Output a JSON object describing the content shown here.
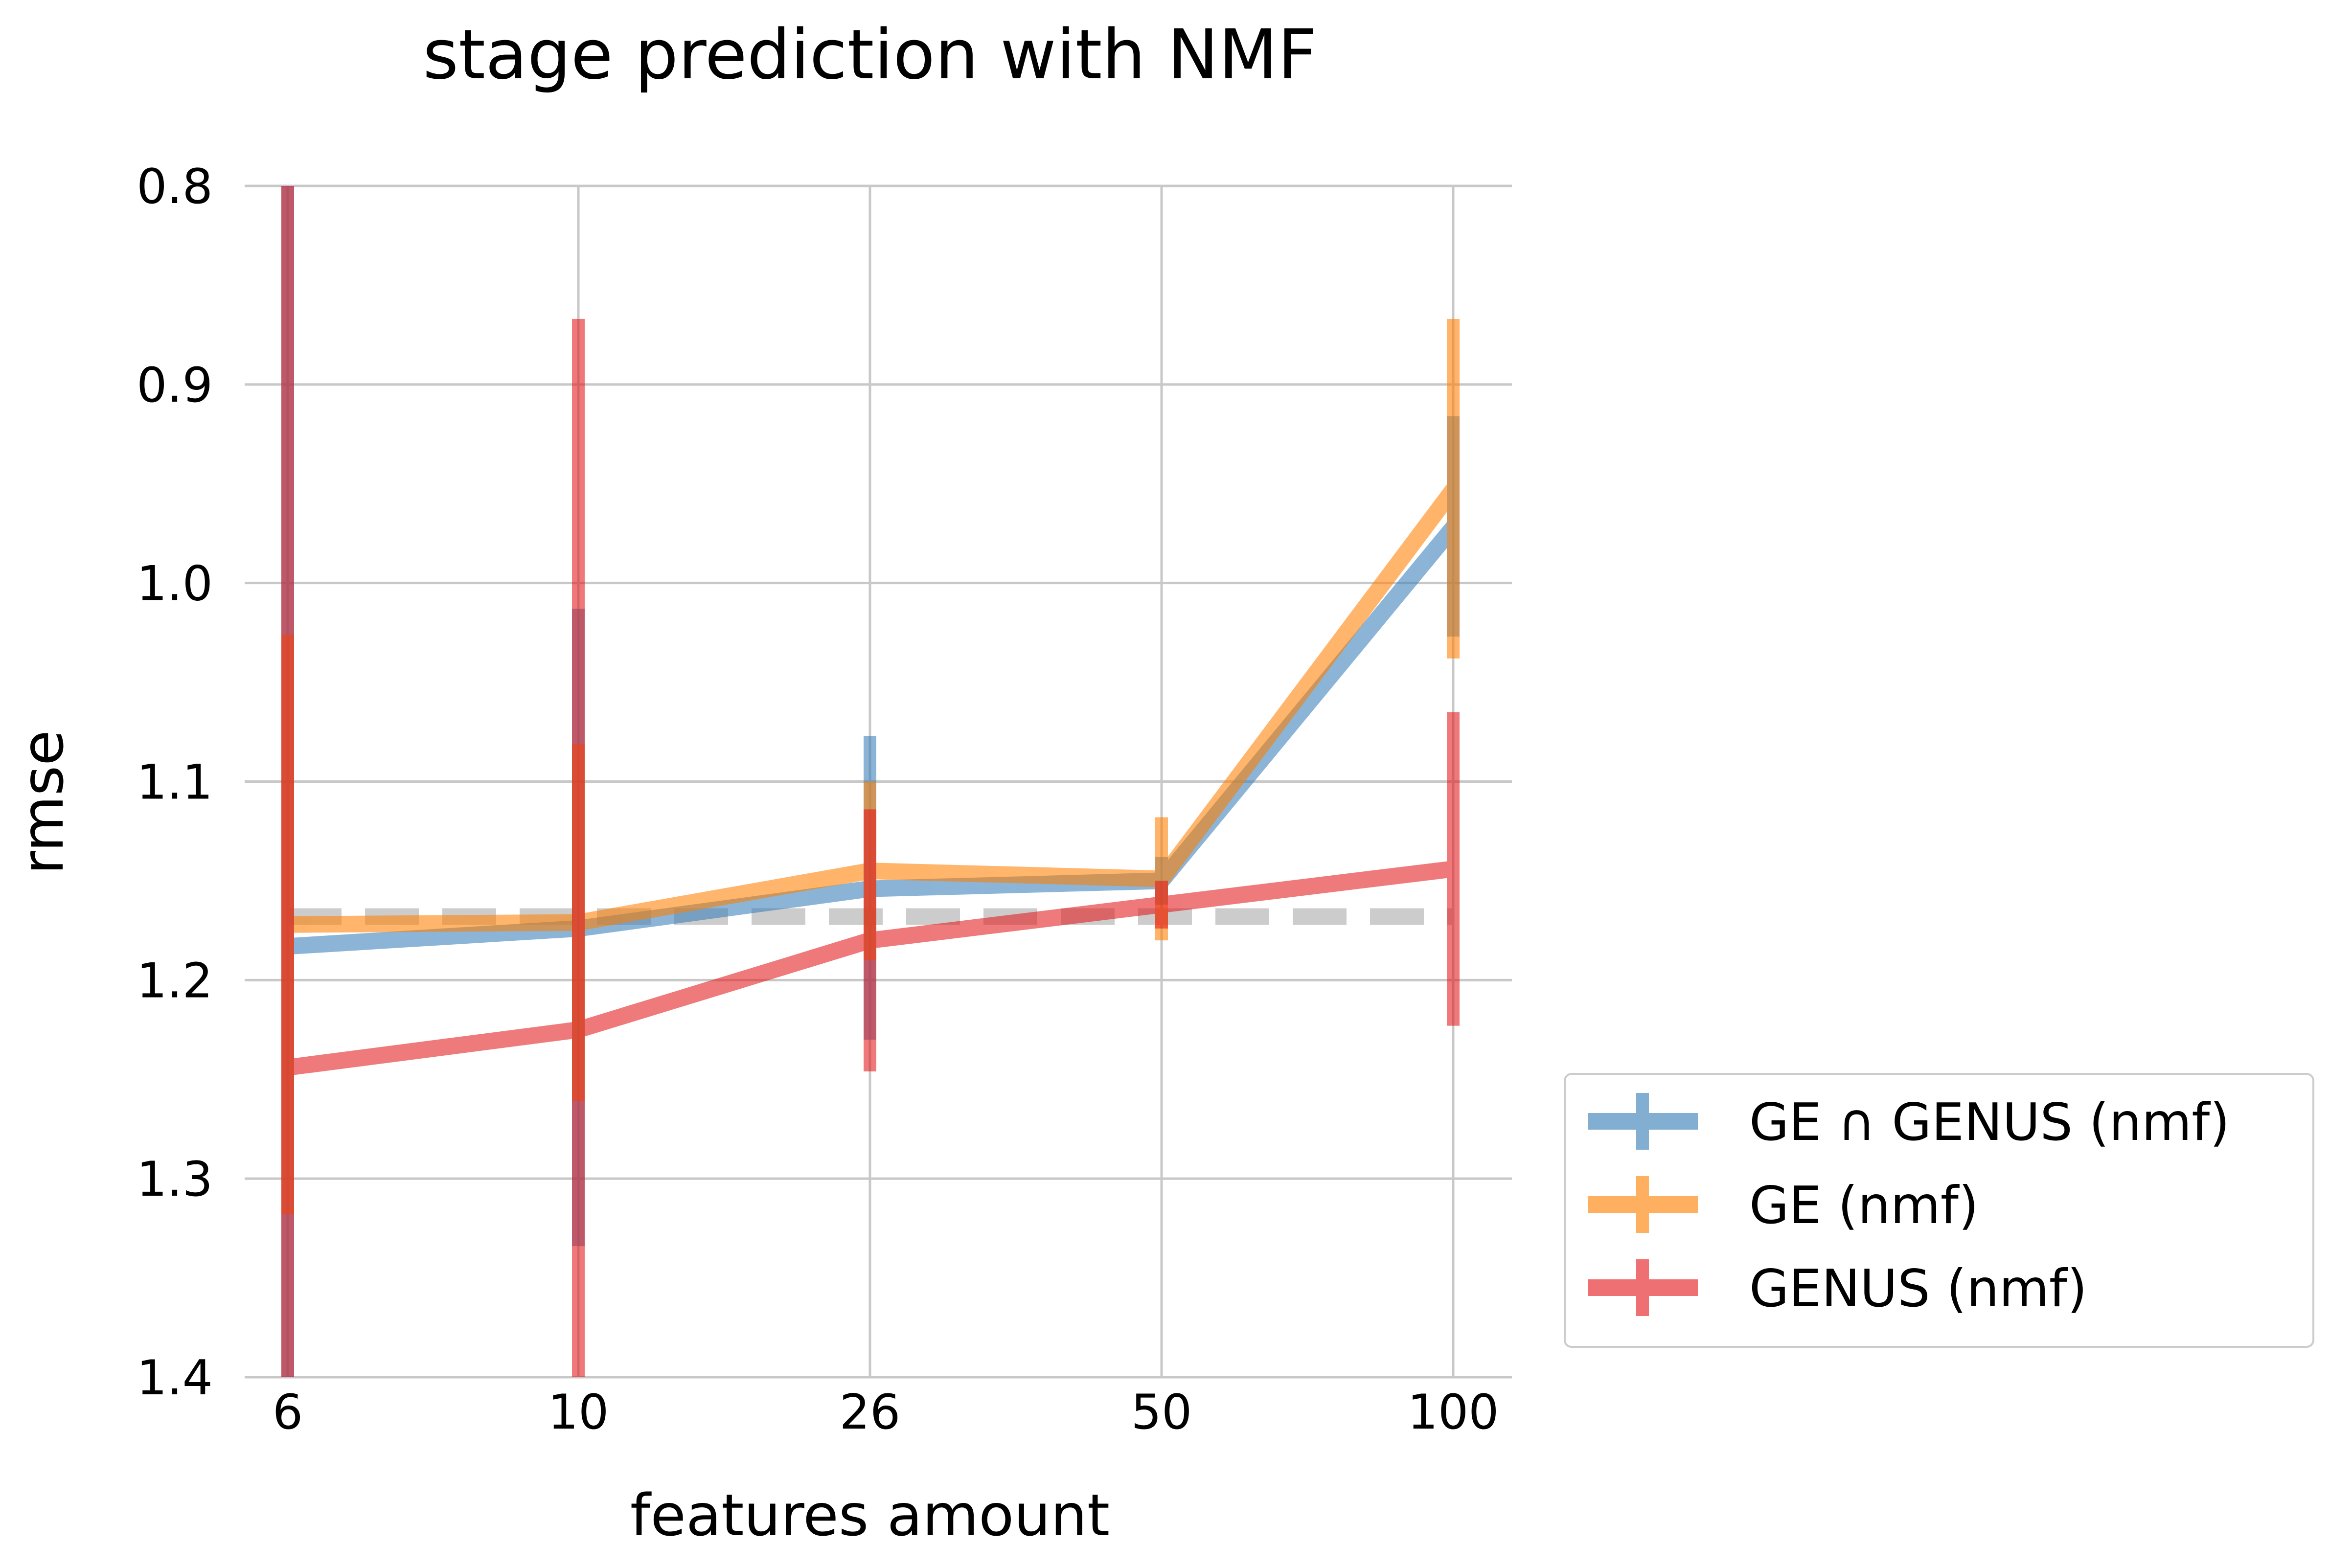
{
  "chart_data": {
    "type": "line",
    "title": "stage prediction with NMF",
    "xlabel": "features amount",
    "ylabel": "rmse",
    "categories": [
      "6",
      "10",
      "26",
      "50",
      "100"
    ],
    "ylim": [
      1.4,
      0.8
    ],
    "y_inverted": true,
    "yticks": [
      "0.8",
      "0.9",
      "1.0",
      "1.1",
      "1.2",
      "1.3",
      "1.4"
    ],
    "grid": true,
    "legend_position": "outside-bottom-right",
    "baseline": {
      "value": 1.168,
      "style": "dashed",
      "color": "#cccccc"
    },
    "series": [
      {
        "name": "GE ∩ GENUS (nmf)",
        "color": "#377eb8",
        "values": [
          1.183,
          1.174,
          1.154,
          1.15,
          0.972
        ],
        "err_low": [
          0.8,
          1.013,
          1.077,
          1.138,
          0.916
        ],
        "err_high": [
          1.4,
          1.334,
          1.23,
          1.162,
          1.027
        ]
      },
      {
        "name": "GE (nmf)",
        "color": "#ff7f00",
        "values": [
          1.172,
          1.171,
          1.145,
          1.149,
          0.953
        ],
        "err_low": [
          1.026,
          1.081,
          1.1,
          1.118,
          0.867
        ],
        "err_high": [
          1.318,
          1.261,
          1.19,
          1.18,
          1.038
        ]
      },
      {
        "name": "GENUS (nmf)",
        "color": "#e41a1c",
        "values": [
          1.244,
          1.225,
          1.18,
          1.162,
          1.144
        ],
        "err_low": [
          0.8,
          0.867,
          1.114,
          1.15,
          1.065
        ],
        "err_high": [
          1.4,
          1.4,
          1.246,
          1.174,
          1.223
        ]
      }
    ]
  }
}
